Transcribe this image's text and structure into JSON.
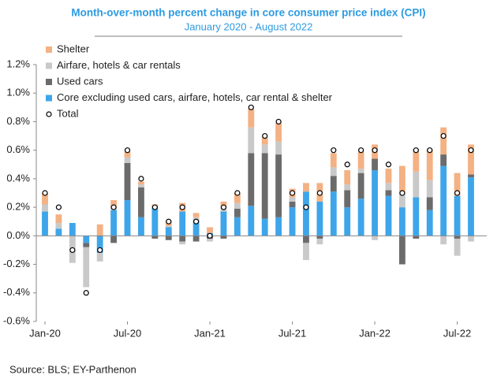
{
  "chart_data": {
    "type": "bar",
    "title": "Month-over-month percent change in core consumer price index (CPI)",
    "subtitle": "January 2020 - August 2022",
    "source": "Source: BLS; EY-Parthenon",
    "stacked": true,
    "categories": [
      "Jan-20",
      null,
      null,
      null,
      null,
      null,
      "Jul-20",
      null,
      null,
      null,
      null,
      null,
      "Jan-21",
      null,
      null,
      null,
      null,
      null,
      "Jul-21",
      null,
      null,
      null,
      null,
      null,
      "Jan-22",
      null,
      null,
      null,
      null,
      null,
      "Jul-22",
      null
    ],
    "series": [
      {
        "name": "Core excluding used cars, airfare, hotels, car rental & shelter",
        "color": "#3ea5ea",
        "values": [
          0.17,
          0.05,
          0.09,
          -0.05,
          -0.12,
          0.18,
          0.25,
          0.13,
          0.2,
          0.06,
          0.17,
          0.11,
          0.02,
          0.17,
          0.13,
          0.21,
          0.12,
          0.13,
          0.2,
          0.31,
          0.24,
          0.31,
          0.2,
          0.26,
          0.46,
          0.28,
          0.2,
          0.27,
          0.18,
          0.49,
          0.28,
          0.41
        ]
      },
      {
        "name": "Used cars",
        "color": "#6b6b6b",
        "values": [
          0,
          0,
          0,
          -0.03,
          0,
          -0.05,
          0.26,
          0.21,
          -0.02,
          -0.03,
          -0.04,
          -0.04,
          -0.02,
          -0.02,
          0.06,
          0.37,
          0.46,
          0.44,
          0.04,
          -0.05,
          -0.02,
          0.11,
          0.12,
          0.18,
          0.08,
          0.04,
          -0.2,
          -0.02,
          0.09,
          0.08,
          -0.02,
          0.02
        ]
      },
      {
        "name": "Airfare, hotels & car rentals",
        "color": "#c9c9c9",
        "values": [
          0.05,
          0.04,
          -0.19,
          -0.28,
          -0.06,
          0.02,
          0.04,
          0.02,
          0,
          0.01,
          -0.02,
          0.02,
          -0.02,
          0.03,
          0.04,
          0.18,
          0.06,
          0.09,
          0.03,
          -0.12,
          -0.04,
          0.06,
          0.04,
          0.03,
          -0.03,
          0.05,
          0.1,
          0.18,
          0.12,
          -0.06,
          -0.12,
          -0.04
        ]
      },
      {
        "name": "Shelter",
        "color": "#f4b183",
        "values": [
          0.08,
          0.06,
          0,
          0,
          0.08,
          0.05,
          0.04,
          0.02,
          0.02,
          0.03,
          0.06,
          0.03,
          0.04,
          0.04,
          0.07,
          0.13,
          0.05,
          0.13,
          0.06,
          0.06,
          0.13,
          0.1,
          0.1,
          0.12,
          0.1,
          0.1,
          0.19,
          0.15,
          0.21,
          0.19,
          0.16,
          0.21
        ]
      },
      {
        "name": "Total",
        "type": "scatter",
        "color": "#ffffff",
        "values": [
          0.3,
          0.2,
          -0.1,
          -0.4,
          -0.1,
          0.2,
          0.6,
          0.4,
          0.2,
          0.1,
          0.2,
          0.1,
          0.0,
          0.2,
          0.3,
          0.9,
          0.7,
          0.8,
          0.3,
          0.2,
          0.3,
          0.6,
          0.5,
          0.6,
          0.6,
          0.5,
          0.3,
          0.6,
          0.6,
          0.7,
          0.3,
          0.6
        ]
      }
    ],
    "ylim": [
      -0.6,
      1.2
    ],
    "yticks": [
      {
        "value": -0.6,
        "label": "-0.6%"
      },
      {
        "value": -0.4,
        "label": "-0.4%"
      },
      {
        "value": -0.2,
        "label": "-0.2%"
      },
      {
        "value": 0,
        "label": "0.0%"
      },
      {
        "value": 0.2,
        "label": "0.2%"
      },
      {
        "value": 0.4,
        "label": "0.4%"
      },
      {
        "value": 0.6,
        "label": "0.6%"
      },
      {
        "value": 0.8,
        "label": "0.8%"
      },
      {
        "value": 1.0,
        "label": "1.0%"
      },
      {
        "value": 1.2,
        "label": "1.2%"
      }
    ],
    "legend": "upper left"
  }
}
